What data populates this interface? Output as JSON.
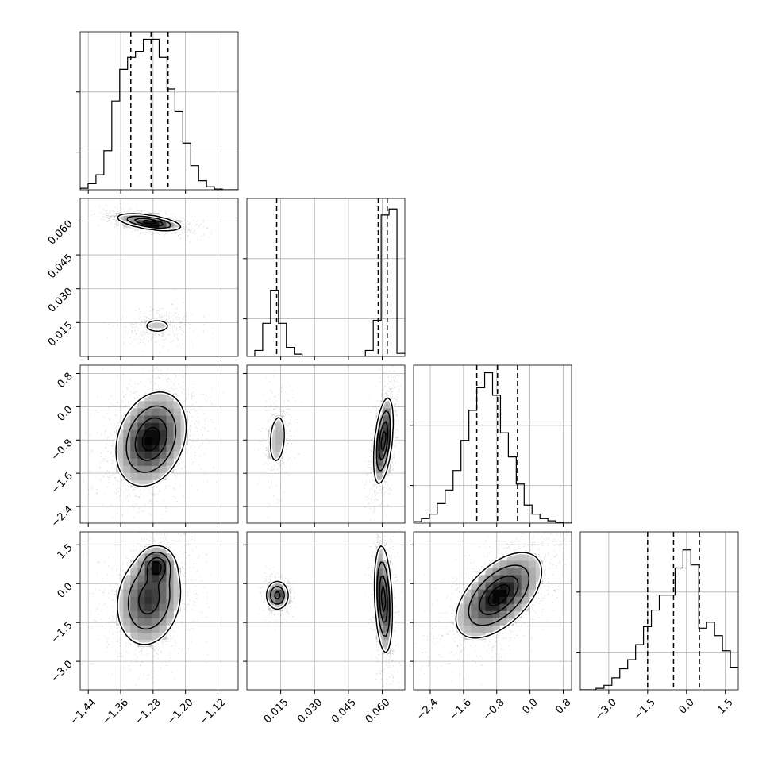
{
  "chart_data": {
    "type": "corner",
    "parameters": [
      {
        "range": [
          -1.46,
          -1.07
        ],
        "ticks": [
          -1.44,
          -1.36,
          -1.28,
          -1.2,
          -1.12
        ],
        "tick_labels": [
          "−1.44",
          "−1.36",
          "−1.28",
          "−1.20",
          "−1.12"
        ],
        "quantiles": [
          -1.335,
          -1.285,
          -1.243
        ],
        "histogram": {
          "edges_start": -1.46,
          "bin_width": 0.0195,
          "counts": [
            0.01,
            0.04,
            0.1,
            0.26,
            0.59,
            0.8,
            0.88,
            0.92,
            1.0,
            1.0,
            0.88,
            0.67,
            0.52,
            0.31,
            0.16,
            0.06,
            0.02,
            0.005,
            0.0,
            0.0
          ]
        }
      },
      {
        "range": [
          0.0,
          0.07
        ],
        "ticks": [
          0.015,
          0.03,
          0.045,
          0.06
        ],
        "tick_labels": [
          "0.015",
          "0.030",
          "0.045",
          "0.060"
        ],
        "quantiles": [
          0.0132,
          0.0582,
          0.0622
        ],
        "histogram": {
          "edges_start": 0.0,
          "bin_width": 0.0035,
          "counts": [
            0.0,
            0.04,
            0.22,
            0.44,
            0.22,
            0.06,
            0.015,
            0.0,
            0.0,
            0.0,
            0.0,
            0.0,
            0.0,
            0.0,
            0.0,
            0.04,
            0.24,
            0.94,
            0.98,
            0.02
          ]
        }
      },
      {
        "range": [
          -2.8,
          1.0
        ],
        "ticks": [
          -2.4,
          -1.6,
          -0.8,
          0.0,
          0.8
        ],
        "tick_labels": [
          "−2.4",
          "−1.6",
          "−0.8",
          "0.0",
          "0.8"
        ],
        "quantiles": [
          -1.28,
          -0.78,
          -0.3
        ],
        "histogram": {
          "edges_start": -2.8,
          "bin_width": 0.19,
          "counts": [
            0.01,
            0.03,
            0.06,
            0.13,
            0.22,
            0.35,
            0.55,
            0.75,
            0.9,
            1.0,
            0.85,
            0.6,
            0.44,
            0.26,
            0.12,
            0.06,
            0.03,
            0.015,
            0.005,
            0.0
          ]
        }
      },
      {
        "range": [
          -4.1,
          2.0
        ],
        "ticks": [
          -3.0,
          -1.5,
          0.0,
          1.5
        ],
        "tick_labels": [
          "−3.0",
          "−1.5",
          "0.0",
          "1.5"
        ],
        "quantiles": [
          -1.5,
          -0.5,
          0.5
        ],
        "histogram": {
          "edges_start": -4.1,
          "bin_width": 0.305,
          "counts": [
            0.0,
            0.0,
            0.01,
            0.03,
            0.08,
            0.14,
            0.2,
            0.3,
            0.42,
            0.53,
            0.63,
            0.63,
            0.81,
            0.93,
            0.83,
            0.41,
            0.45,
            0.36,
            0.26,
            0.15
          ]
        }
      }
    ],
    "panels_2d": [
      {
        "x": 0,
        "y": 1,
        "clusters": [
          {
            "cx": -1.29,
            "cy": 0.0595,
            "sx": 0.038,
            "sy": 0.0018,
            "rho": -0.55,
            "w": 0.78
          },
          {
            "cx": -1.27,
            "cy": 0.0135,
            "sx": 0.033,
            "sy": 0.003,
            "rho": 0.0,
            "w": 0.22
          }
        ]
      },
      {
        "x": 0,
        "y": 2,
        "clusters": [
          {
            "cx": -1.285,
            "cy": -0.78,
            "sx": 0.042,
            "sy": 0.55,
            "rho": 0.25,
            "w": 1.0
          }
        ]
      },
      {
        "x": 0,
        "y": 3,
        "clusters": [
          {
            "cx": -1.29,
            "cy": -0.6,
            "sx": 0.04,
            "sy": 0.9,
            "rho": 0.15,
            "w": 0.85
          },
          {
            "cx": -1.27,
            "cy": 0.7,
            "sx": 0.02,
            "sy": 0.35,
            "rho": 0.0,
            "w": 0.15
          }
        ]
      },
      {
        "x": 1,
        "y": 2,
        "clusters": [
          {
            "cx": 0.0605,
            "cy": -0.82,
            "sx": 0.0021,
            "sy": 0.5,
            "rho": 0.45,
            "w": 0.78
          },
          {
            "cx": 0.0135,
            "cy": -0.78,
            "sx": 0.0025,
            "sy": 0.42,
            "rho": 0.2,
            "w": 0.22
          }
        ]
      },
      {
        "x": 1,
        "y": 3,
        "clusters": [
          {
            "cx": 0.0605,
            "cy": -0.6,
            "sx": 0.0019,
            "sy": 1.0,
            "rho": -0.25,
            "w": 0.78
          },
          {
            "cx": 0.0135,
            "cy": -0.45,
            "sx": 0.0025,
            "sy": 0.28,
            "rho": 0.0,
            "w": 0.22
          }
        ]
      },
      {
        "x": 2,
        "y": 3,
        "clusters": [
          {
            "cx": -0.75,
            "cy": -0.45,
            "sx": 0.5,
            "sy": 0.8,
            "rho": 0.55,
            "w": 1.0
          }
        ]
      }
    ],
    "contour_levels": [
      0.12,
      0.35,
      0.65,
      0.88
    ],
    "grid": true,
    "title": "",
    "xlabel": "",
    "ylabel": ""
  }
}
